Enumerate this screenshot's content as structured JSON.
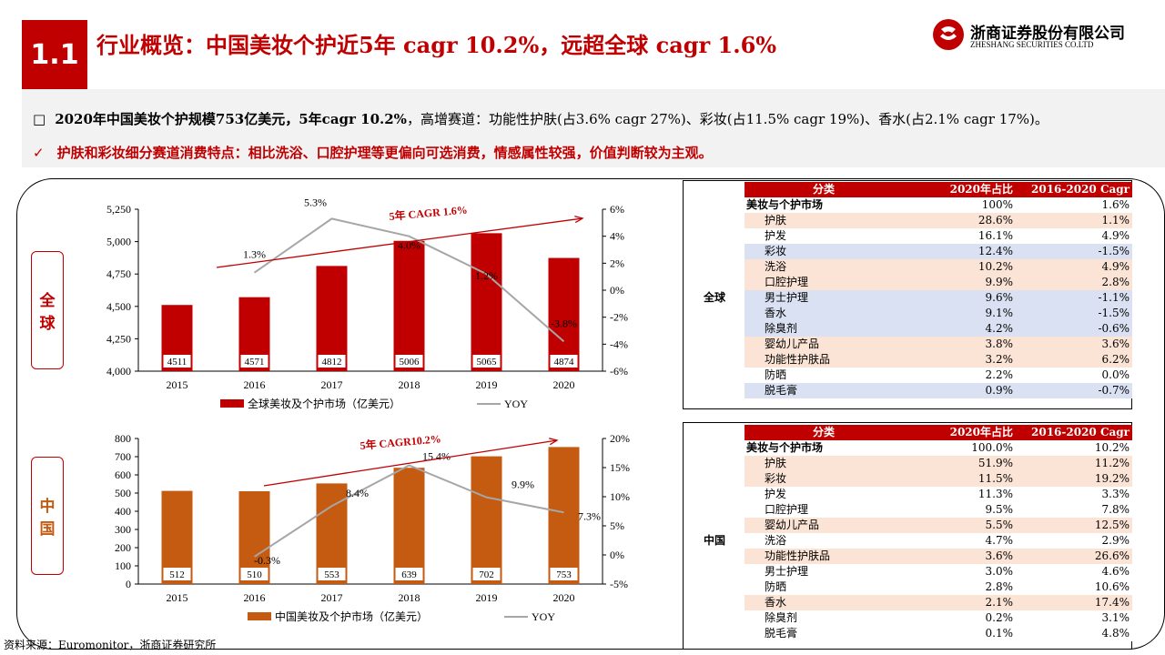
{
  "header": {
    "badge": "1.1",
    "title": "行业概览：中国美妆个护近5年 cagr 10.2%，远超全球 cagr 1.6%",
    "logo_cn": "浙商证券股份有限公司",
    "logo_en": "ZHESHANG SECURITIES CO.LTD"
  },
  "bullets": {
    "b1_marker": "□",
    "b1_bold": "2020年中国美妆个护规模753亿美元，5年cagr 10.2%",
    "b1_rest": "，高增赛道：功能性护肤(占3.6% cagr 27%)、彩妆(占11.5% cagr 19%)、香水(占2.1% cagr 17%)。",
    "b2_marker": "✓",
    "b2_text": "护肤和彩妆细分赛道消费特点：相比洗浴、口腔护理等更偏向可选消费，情感属性较强，价值判断较为主观。"
  },
  "side_labels": {
    "global": [
      "全",
      "球"
    ],
    "china": [
      "中",
      "国"
    ]
  },
  "source": "资料来源：Euromonitor，浙商证券研究所",
  "colors": {
    "accent": "#c00000",
    "china_bar": "#c55a11",
    "yoy_line": "#a6a6a6",
    "global_bar": "#c00000",
    "pink_row": "#fbe4d5",
    "blue_row": "#d9e1f2"
  },
  "chart_data": [
    {
      "type": "bar",
      "categories": [
        "2015",
        "2016",
        "2017",
        "2018",
        "2019",
        "2020"
      ],
      "series": [
        {
          "name": "全球美妆及个护市场（亿美元）",
          "values": [
            4511,
            4571,
            4812,
            5006,
            5065,
            4874
          ],
          "axis": "left"
        },
        {
          "name": "YOY",
          "type": "line",
          "values": [
            null,
            1.3,
            5.3,
            4.0,
            1.2,
            -3.8
          ],
          "value_labels": [
            "",
            "1.3%",
            "5.3%",
            "4.0%",
            "1.2%",
            "-3.8%"
          ],
          "axis": "right"
        }
      ],
      "left_axis": {
        "ylim": [
          4000,
          5250
        ],
        "ticks": [
          "4,000",
          "4,250",
          "4,500",
          "4,750",
          "5,000",
          "5,250"
        ]
      },
      "right_axis": {
        "ylim": [
          -6,
          6
        ],
        "ticks": [
          "-6%",
          "-4%",
          "-2%",
          "0%",
          "2%",
          "4%",
          "6%"
        ]
      },
      "annotation": "5年 CAGR 1.6%",
      "legend_placement": "bottom"
    },
    {
      "type": "bar",
      "categories": [
        "2015",
        "2016",
        "2017",
        "2018",
        "2019",
        "2020"
      ],
      "series": [
        {
          "name": "中国美妆及个护市场（亿美元）",
          "values": [
            512,
            510,
            553,
            639,
            702,
            753
          ],
          "axis": "left"
        },
        {
          "name": "YOY",
          "type": "line",
          "values": [
            null,
            -0.3,
            8.4,
            15.4,
            9.9,
            7.3
          ],
          "value_labels": [
            "",
            "-0.3%",
            "8.4%",
            "15.4%",
            "9.9%",
            "7.3%"
          ],
          "axis": "right"
        }
      ],
      "left_axis": {
        "ylim": [
          0,
          800
        ],
        "ticks": [
          "0",
          "100",
          "200",
          "300",
          "400",
          "500",
          "600",
          "700",
          "800"
        ]
      },
      "right_axis": {
        "ylim": [
          -5,
          20
        ],
        "ticks": [
          "-5%",
          "0%",
          "5%",
          "10%",
          "15%",
          "20%"
        ]
      },
      "annotation": "5年 CAGR10.2%",
      "legend_placement": "bottom"
    },
    {
      "type": "table",
      "region": "全球",
      "columns": [
        "分类",
        "2020年占比",
        "2016-2020 Cagr"
      ],
      "rows": [
        {
          "name": "美妆与个护市场",
          "share": "100%",
          "cagr": "1.6%",
          "bold": true,
          "shade": "none"
        },
        {
          "name": "护肤",
          "share": "28.6%",
          "cagr": "1.1%",
          "shade": "pink"
        },
        {
          "name": "护发",
          "share": "16.1%",
          "cagr": "4.9%",
          "shade": "none"
        },
        {
          "name": "彩妆",
          "share": "12.4%",
          "cagr": "-1.5%",
          "shade": "blue"
        },
        {
          "name": "洗浴",
          "share": "10.2%",
          "cagr": "4.9%",
          "shade": "pink"
        },
        {
          "name": "口腔护理",
          "share": "9.9%",
          "cagr": "2.8%",
          "shade": "pink"
        },
        {
          "name": "男士护理",
          "share": "9.6%",
          "cagr": "-1.1%",
          "shade": "blue"
        },
        {
          "name": "香水",
          "share": "9.1%",
          "cagr": "-1.5%",
          "shade": "blue"
        },
        {
          "name": "除臭剂",
          "share": "4.2%",
          "cagr": "-0.6%",
          "shade": "blue"
        },
        {
          "name": "婴幼儿产品",
          "share": "3.8%",
          "cagr": "3.6%",
          "shade": "pink"
        },
        {
          "name": "功能性护肤品",
          "share": "3.2%",
          "cagr": "6.2%",
          "shade": "pink"
        },
        {
          "name": "防晒",
          "share": "2.2%",
          "cagr": "0.0%",
          "shade": "none"
        },
        {
          "name": "脱毛膏",
          "share": "0.9%",
          "cagr": "-0.7%",
          "shade": "blue"
        }
      ]
    },
    {
      "type": "table",
      "region": "中国",
      "columns": [
        "分类",
        "2020年占比",
        "2016-2020 Cagr"
      ],
      "rows": [
        {
          "name": "美妆与个护市场",
          "share": "100.0%",
          "cagr": "10.2%",
          "bold": true,
          "shade": "none"
        },
        {
          "name": "护肤",
          "share": "51.9%",
          "cagr": "11.2%",
          "shade": "pink"
        },
        {
          "name": "彩妆",
          "share": "11.5%",
          "cagr": "19.2%",
          "shade": "pink"
        },
        {
          "name": "护发",
          "share": "11.3%",
          "cagr": "3.3%",
          "shade": "none"
        },
        {
          "name": "口腔护理",
          "share": "9.5%",
          "cagr": "7.8%",
          "shade": "none"
        },
        {
          "name": "婴幼儿产品",
          "share": "5.5%",
          "cagr": "12.5%",
          "shade": "pink"
        },
        {
          "name": "洗浴",
          "share": "4.7%",
          "cagr": "2.9%",
          "shade": "none"
        },
        {
          "name": "功能性护肤品",
          "share": "3.6%",
          "cagr": "26.6%",
          "shade": "pink"
        },
        {
          "name": "男士护理",
          "share": "3.0%",
          "cagr": "4.6%",
          "shade": "none"
        },
        {
          "name": "防晒",
          "share": "2.8%",
          "cagr": "10.6%",
          "shade": "none"
        },
        {
          "name": "香水",
          "share": "2.1%",
          "cagr": "17.4%",
          "shade": "pink"
        },
        {
          "name": "除臭剂",
          "share": "0.2%",
          "cagr": "3.1%",
          "shade": "none"
        },
        {
          "name": "脱毛膏",
          "share": "0.1%",
          "cagr": "4.8%",
          "shade": "none"
        }
      ]
    }
  ]
}
